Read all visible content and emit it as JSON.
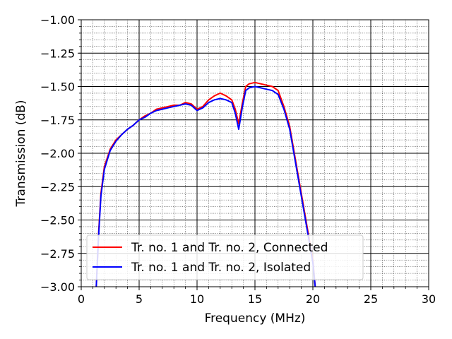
{
  "chart_data": {
    "type": "line",
    "title": "",
    "xlabel": "Frequency (MHz)",
    "ylabel": "Transmission (dB)",
    "xlim": [
      0,
      30
    ],
    "ylim": [
      -3.0,
      -1.0
    ],
    "x_ticks": [
      0,
      5,
      10,
      15,
      20,
      25,
      30
    ],
    "x_tick_labels": [
      "0",
      "5",
      "10",
      "15",
      "20",
      "25",
      "30"
    ],
    "y_ticks": [
      -3.0,
      -2.75,
      -2.5,
      -2.25,
      -2.0,
      -1.75,
      -1.5,
      -1.25,
      -1.0
    ],
    "y_tick_labels": [
      "−3.00",
      "−2.75",
      "−2.50",
      "−2.25",
      "−2.00",
      "−1.75",
      "−1.50",
      "−1.25",
      "−1.00"
    ],
    "grid": true,
    "minor_grid": true,
    "legend_position": "lower-left",
    "series": [
      {
        "name": "Tr. no. 1 and Tr. no. 2, Connected",
        "color": "#ff0000",
        "x": [
          1.3,
          1.5,
          1.7,
          2.0,
          2.5,
          3.0,
          3.5,
          4.0,
          4.5,
          5.0,
          5.5,
          6.0,
          6.5,
          7.0,
          7.5,
          8.0,
          8.5,
          9.0,
          9.5,
          10.0,
          10.5,
          11.0,
          11.5,
          12.0,
          12.5,
          13.0,
          13.3,
          13.6,
          13.9,
          14.2,
          14.5,
          15.0,
          15.5,
          16.0,
          16.5,
          17.0,
          17.5,
          18.0,
          18.5,
          19.0,
          19.5,
          20.0,
          20.2
        ],
        "y": [
          -3.0,
          -2.6,
          -2.3,
          -2.1,
          -1.97,
          -1.9,
          -1.86,
          -1.82,
          -1.79,
          -1.75,
          -1.72,
          -1.7,
          -1.67,
          -1.66,
          -1.65,
          -1.64,
          -1.64,
          -1.62,
          -1.63,
          -1.67,
          -1.65,
          -1.6,
          -1.57,
          -1.55,
          -1.57,
          -1.6,
          -1.67,
          -1.78,
          -1.63,
          -1.5,
          -1.48,
          -1.47,
          -1.48,
          -1.49,
          -1.5,
          -1.53,
          -1.65,
          -1.8,
          -2.05,
          -2.3,
          -2.55,
          -2.8,
          -3.0
        ]
      },
      {
        "name": "Tr. no. 1 and Tr. no. 2, Isolated",
        "color": "#0000ff",
        "x": [
          1.3,
          1.5,
          1.7,
          2.0,
          2.5,
          3.0,
          3.5,
          4.0,
          4.5,
          5.0,
          5.5,
          6.0,
          6.5,
          7.0,
          7.5,
          8.0,
          8.5,
          9.0,
          9.5,
          10.0,
          10.5,
          11.0,
          11.5,
          12.0,
          12.5,
          13.0,
          13.3,
          13.6,
          13.9,
          14.2,
          14.5,
          15.0,
          15.5,
          16.0,
          16.5,
          17.0,
          17.5,
          18.0,
          18.5,
          19.0,
          19.5,
          20.0,
          20.2
        ],
        "y": [
          -3.0,
          -2.62,
          -2.32,
          -2.12,
          -1.98,
          -1.91,
          -1.86,
          -1.82,
          -1.79,
          -1.75,
          -1.73,
          -1.7,
          -1.68,
          -1.67,
          -1.66,
          -1.65,
          -1.64,
          -1.63,
          -1.64,
          -1.68,
          -1.66,
          -1.62,
          -1.6,
          -1.59,
          -1.6,
          -1.62,
          -1.7,
          -1.82,
          -1.66,
          -1.53,
          -1.51,
          -1.5,
          -1.51,
          -1.52,
          -1.53,
          -1.56,
          -1.67,
          -1.82,
          -2.07,
          -2.32,
          -2.57,
          -2.82,
          -3.0
        ]
      }
    ]
  }
}
